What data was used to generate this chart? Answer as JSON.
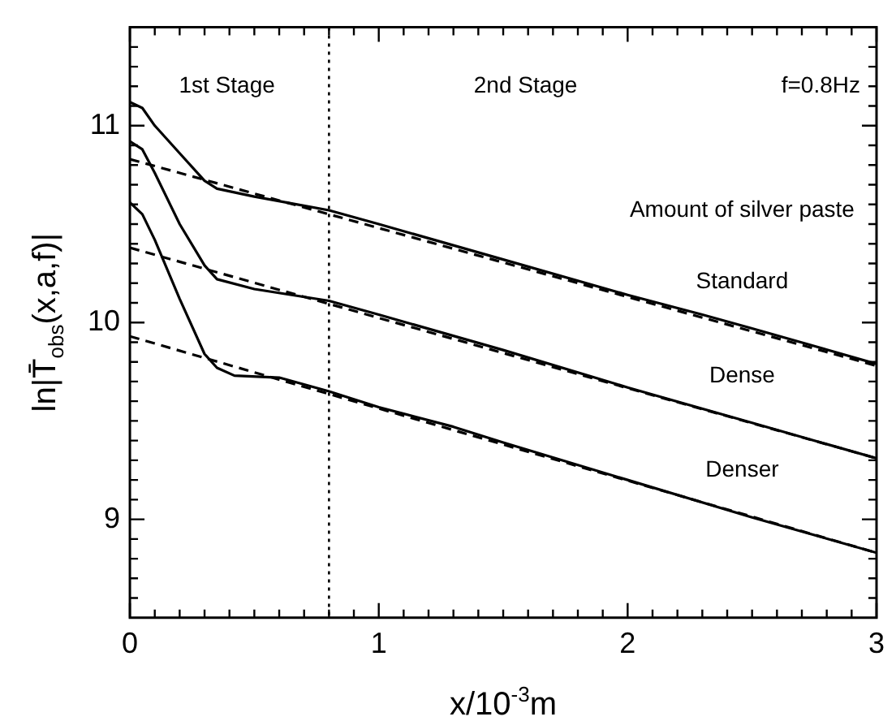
{
  "chart_data": {
    "type": "line",
    "xlabel": "x/10$^{-3}$m",
    "ylabel": "ln|T̄$_{obs}$(x,a,f)|",
    "xlim": [
      0,
      3
    ],
    "ylim": [
      8.5,
      11.5
    ],
    "xticks": [
      0,
      {
        "value": 0.1,
        "label": null
      },
      {
        "value": 0.2,
        "label": null
      },
      {
        "value": 0.3,
        "label": null
      },
      {
        "value": 0.4,
        "label": null
      },
      {
        "value": 0.5,
        "label": null
      },
      {
        "value": 0.6,
        "label": null
      },
      {
        "value": 0.7,
        "label": null
      },
      {
        "value": 0.8,
        "label": null
      },
      {
        "value": 0.9,
        "label": null
      },
      1,
      {
        "value": 1.1,
        "label": null
      },
      {
        "value": 1.2,
        "label": null
      },
      {
        "value": 1.3,
        "label": null
      },
      {
        "value": 1.4,
        "label": null
      },
      {
        "value": 1.5,
        "label": null
      },
      {
        "value": 1.6,
        "label": null
      },
      {
        "value": 1.7,
        "label": null
      },
      {
        "value": 1.8,
        "label": null
      },
      {
        "value": 1.9,
        "label": null
      },
      2,
      {
        "value": 2.1,
        "label": null
      },
      {
        "value": 2.2,
        "label": null
      },
      {
        "value": 2.3,
        "label": null
      },
      {
        "value": 2.4,
        "label": null
      },
      {
        "value": 2.5,
        "label": null
      },
      {
        "value": 2.6,
        "label": null
      },
      {
        "value": 2.7,
        "label": null
      },
      {
        "value": 2.8,
        "label": null
      },
      {
        "value": 2.9,
        "label": null
      },
      3
    ],
    "yticks": [
      {
        "value": 8.6,
        "label": null
      },
      {
        "value": 8.7,
        "label": null
      },
      {
        "value": 8.8,
        "label": null
      },
      {
        "value": 8.9,
        "label": null
      },
      9,
      {
        "value": 9.1,
        "label": null
      },
      {
        "value": 9.2,
        "label": null
      },
      {
        "value": 9.3,
        "label": null
      },
      {
        "value": 9.4,
        "label": null
      },
      {
        "value": 9.5,
        "label": null
      },
      {
        "value": 9.6,
        "label": null
      },
      {
        "value": 9.7,
        "label": null
      },
      {
        "value": 9.8,
        "label": null
      },
      {
        "value": 9.9,
        "label": null
      },
      10,
      {
        "value": 10.1,
        "label": null
      },
      {
        "value": 10.2,
        "label": null
      },
      {
        "value": 10.3,
        "label": null
      },
      {
        "value": 10.4,
        "label": null
      },
      {
        "value": 10.5,
        "label": null
      },
      {
        "value": 10.6,
        "label": null
      },
      {
        "value": 10.7,
        "label": null
      },
      {
        "value": 10.8,
        "label": null
      },
      {
        "value": 10.9,
        "label": null
      },
      11,
      {
        "value": 11.1,
        "label": null
      },
      {
        "value": 11.2,
        "label": null
      },
      {
        "value": 11.3,
        "label": null
      },
      {
        "value": 11.4,
        "label": null
      }
    ],
    "grid": false,
    "legend": false,
    "marker": "none",
    "series": [
      {
        "name": "Standard",
        "color": "#000000",
        "line_style": "solid",
        "x": [
          0,
          0.05,
          0.1,
          0.2,
          0.3,
          0.35,
          0.5,
          0.8,
          1.0,
          1.5,
          2.0,
          2.3,
          2.5,
          3
        ],
        "values": [
          11.12,
          11.09,
          11.0,
          10.86,
          10.72,
          10.68,
          10.64,
          10.57,
          10.5,
          10.32,
          10.14,
          10.04,
          9.97,
          9.79
        ]
      },
      {
        "name": "Dense",
        "color": "#000000",
        "line_style": "solid",
        "x": [
          0,
          0.05,
          0.1,
          0.2,
          0.3,
          0.35,
          0.5,
          0.8,
          1.0,
          1.5,
          2.0,
          2.5,
          3
        ],
        "values": [
          10.92,
          10.88,
          10.76,
          10.5,
          10.29,
          10.22,
          10.17,
          10.11,
          10.04,
          9.86,
          9.67,
          9.49,
          9.31
        ]
      },
      {
        "name": "Denser",
        "color": "#000000",
        "line_style": "solid",
        "x": [
          0,
          0.05,
          0.1,
          0.2,
          0.3,
          0.35,
          0.42,
          0.6,
          0.8,
          1.0,
          1.3,
          1.5,
          2.0,
          2.5,
          3
        ],
        "values": [
          10.61,
          10.55,
          10.42,
          10.12,
          9.84,
          9.77,
          9.73,
          9.72,
          9.65,
          9.57,
          9.47,
          9.39,
          9.2,
          9.01,
          8.83
        ]
      },
      {
        "type": "line",
        "color": "#000000",
        "line_style": "dashed",
        "x": [
          0,
          3
        ],
        "values": [
          10.83,
          9.78
        ]
      },
      {
        "type": "line",
        "color": "#000000",
        "line_style": "dashed",
        "x": [
          0,
          3
        ],
        "values": [
          10.38,
          9.31
        ]
      },
      {
        "type": "line",
        "color": "#000000",
        "line_style": "dashed",
        "x": [
          0,
          3
        ],
        "values": [
          9.93,
          8.83
        ]
      }
    ],
    "ref_lines": [
      {
        "axis": "x",
        "value": 0.8,
        "color": "#000000",
        "line_style": "dotted"
      }
    ],
    "annotations": [
      "1st Stage",
      "2nd Stage",
      "f=0.8Hz",
      "Amount of silver paste"
    ]
  }
}
